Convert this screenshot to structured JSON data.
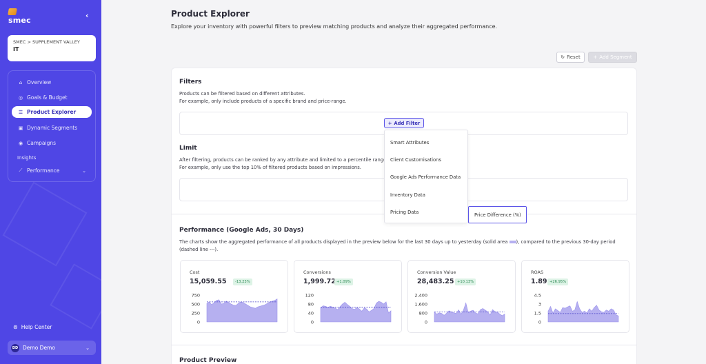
{
  "sidebar": {
    "logo_text": "smec",
    "account_breadcrumb": "SMEC > SUPPLEMENT VALLEY",
    "account_name": "IT",
    "items": [
      {
        "label": "Overview",
        "icon": "home-icon"
      },
      {
        "label": "Goals & Budget",
        "icon": "target-icon"
      },
      {
        "label": "Product Explorer",
        "icon": "list-icon",
        "active": true
      },
      {
        "label": "Dynamic Segments",
        "icon": "layers-icon"
      },
      {
        "label": "Campaigns",
        "icon": "compass-icon"
      }
    ],
    "section_insights": "Insights",
    "performance_label": "Performance",
    "help_label": "Help Center",
    "user_initials": "DD",
    "user_name": "Demo Demo"
  },
  "header": {
    "title": "Product Explorer",
    "description": "Explore your inventory with powerful filters to preview matching products and analyze their aggregated performance."
  },
  "toolbar": {
    "reset_label": "Reset",
    "add_segment_label": "Add Segment"
  },
  "filters": {
    "title": "Filters",
    "desc1": "Products can be filtered based on different attributes.",
    "desc2": "For example, only include products of a specific brand and price-range.",
    "add_filter_label": "Add Filter",
    "menu": [
      "Smart Attributes",
      "Client Customisations",
      "Google Ads Performance Data",
      "Inventory Data",
      "Pricing Data"
    ],
    "submenu_item": "Price Difference (%)"
  },
  "limit": {
    "title": "Limit",
    "desc1": "After filtering, products can be ranked by any attribute and limited to a percentile range.",
    "desc2": "For example, only use the top 10% of filtered products based on impressions."
  },
  "performance": {
    "title": "Performance (Google Ads, 30 Days)",
    "desc_a": "The charts show the aggregated performance of all products displayed in the preview below for the last 30 days up to yesterday (solid area",
    "desc_b": "), compared to the previous 30-day period",
    "desc_c": "(dashed line ---).",
    "metrics": [
      {
        "label": "Cost",
        "value": "15,059.55",
        "delta": "-13.23%",
        "ticks": [
          "750",
          "500",
          "250",
          "0"
        ],
        "ymax": 750,
        "prev": 560
      },
      {
        "label": "Conversions",
        "value": "1,999.72",
        "delta": "+1.09%",
        "ticks": [
          "120",
          "80",
          "40",
          "0"
        ],
        "ymax": 120,
        "prev": 66
      },
      {
        "label": "Conversion Value",
        "value": "28,483.25",
        "delta": "+10.13%",
        "ticks": [
          "2,400",
          "1,600",
          "800",
          "0"
        ],
        "ymax": 2400,
        "prev": 900
      },
      {
        "label": "ROAS",
        "value": "1.89",
        "delta": "+26.95%",
        "ticks": [
          "4.5",
          "3",
          "1.5",
          "0"
        ],
        "ymax": 4.5,
        "prev": 1.4
      }
    ]
  },
  "chart_data": [
    {
      "type": "area",
      "title": "Cost",
      "ylim": [
        0,
        750
      ],
      "x": [
        1,
        2,
        3,
        4,
        5,
        6,
        7,
        8,
        9,
        10,
        11,
        12,
        13,
        14,
        15,
        16,
        17,
        18,
        19,
        20,
        21,
        22,
        23,
        24,
        25,
        26,
        27,
        28,
        29,
        30
      ],
      "series": [
        {
          "name": "",
          "values": [
            520,
            560,
            480,
            540,
            600,
            620,
            500,
            520,
            580,
            540,
            500,
            470,
            460,
            520,
            560,
            540,
            500,
            460,
            420,
            400,
            380,
            420,
            440,
            460,
            480,
            520,
            560,
            580,
            600,
            640
          ]
        }
      ]
    },
    {
      "type": "area",
      "title": "Conversions",
      "ylim": [
        0,
        120
      ],
      "x": [
        1,
        2,
        3,
        4,
        5,
        6,
        7,
        8,
        9,
        10,
        11,
        12,
        13,
        14,
        15,
        16,
        17,
        18,
        19,
        20,
        21,
        22,
        23,
        24,
        25,
        26,
        27,
        28,
        29,
        30
      ],
      "series": [
        {
          "name": "",
          "values": [
            62,
            72,
            70,
            65,
            70,
            66,
            62,
            55,
            68,
            80,
            88,
            78,
            70,
            60,
            56,
            64,
            58,
            48,
            62,
            58,
            45,
            52,
            60,
            84,
            92,
            88,
            80,
            90,
            40,
            50
          ]
        }
      ]
    },
    {
      "type": "area",
      "title": "Conversion Value",
      "ylim": [
        0,
        2400
      ],
      "x": [
        1,
        2,
        3,
        4,
        5,
        6,
        7,
        8,
        9,
        10,
        11,
        12,
        13,
        14,
        15,
        16,
        17,
        18,
        19,
        20,
        21,
        22,
        23,
        24,
        25,
        26,
        27,
        28,
        29,
        30
      ],
      "series": [
        {
          "name": "",
          "values": [
            900,
            700,
            820,
            760,
            600,
            780,
            1000,
            900,
            820,
            760,
            1080,
            700,
            1050,
            1700,
            820,
            980,
            1040,
            800,
            720,
            1100,
            1200,
            1050,
            900,
            620,
            1100,
            920,
            880,
            700,
            560,
            700
          ]
        }
      ]
    },
    {
      "type": "area",
      "title": "ROAS",
      "ylim": [
        0,
        4.5
      ],
      "x": [
        1,
        2,
        3,
        4,
        5,
        6,
        7,
        8,
        9,
        10,
        11,
        12,
        13,
        14,
        15,
        16,
        17,
        18,
        19,
        20,
        21,
        22,
        23,
        24,
        25,
        26,
        27,
        28,
        29,
        30
      ],
      "series": [
        {
          "name": "",
          "values": [
            1.8,
            2.6,
            1.5,
            2.2,
            1.9,
            1.6,
            2.4,
            2.3,
            2.5,
            2.7,
            1.8,
            2.0,
            3.4,
            2.2,
            1.6,
            1.8,
            1.5,
            2.2,
            1.8,
            2.4,
            2.8,
            2.0,
            1.7,
            1.6,
            2.0,
            1.8,
            2.2,
            2.0,
            1.2,
            1.0
          ]
        }
      ]
    }
  ],
  "preview": {
    "title": "Product Preview"
  }
}
